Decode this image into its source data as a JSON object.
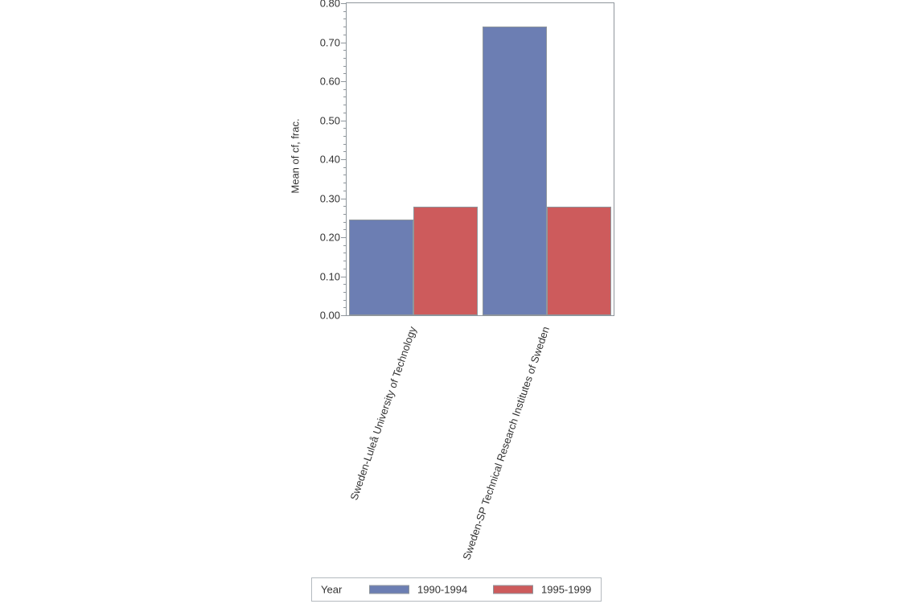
{
  "chart_data": {
    "type": "bar",
    "title": "",
    "ylabel": "Mean of cf, frac.",
    "xlabel": "",
    "categories": [
      "Sweden-Luleå University of Technology",
      "Sweden-SP Technical Research Institutes of Sweden"
    ],
    "series": [
      {
        "name": "1990-1994",
        "color": "#6C7EB3",
        "values": [
          0.245,
          0.741
        ]
      },
      {
        "name": "1995-1999",
        "color": "#CD5B5C",
        "values": [
          0.278,
          0.278
        ]
      }
    ],
    "ylim": [
      0.0,
      0.8
    ],
    "ytick_step": 0.1,
    "yminor_step": 0.02,
    "ytick_labels": [
      "0.00",
      "0.10",
      "0.20",
      "0.30",
      "0.40",
      "0.50",
      "0.60",
      "0.70",
      "0.80"
    ],
    "grid": false,
    "legend": {
      "title": "Year",
      "position": "bottom",
      "entries": [
        "1990-1994",
        "1995-1999"
      ]
    }
  },
  "colors": {
    "bar_blue": "#6C7EB3",
    "bar_red": "#CD5B5C",
    "axis_line": "#8F969C",
    "bar_border": "#8F969C",
    "legend_border": "#B4BABF",
    "text": "#333333",
    "background": "#FFFFFF"
  }
}
